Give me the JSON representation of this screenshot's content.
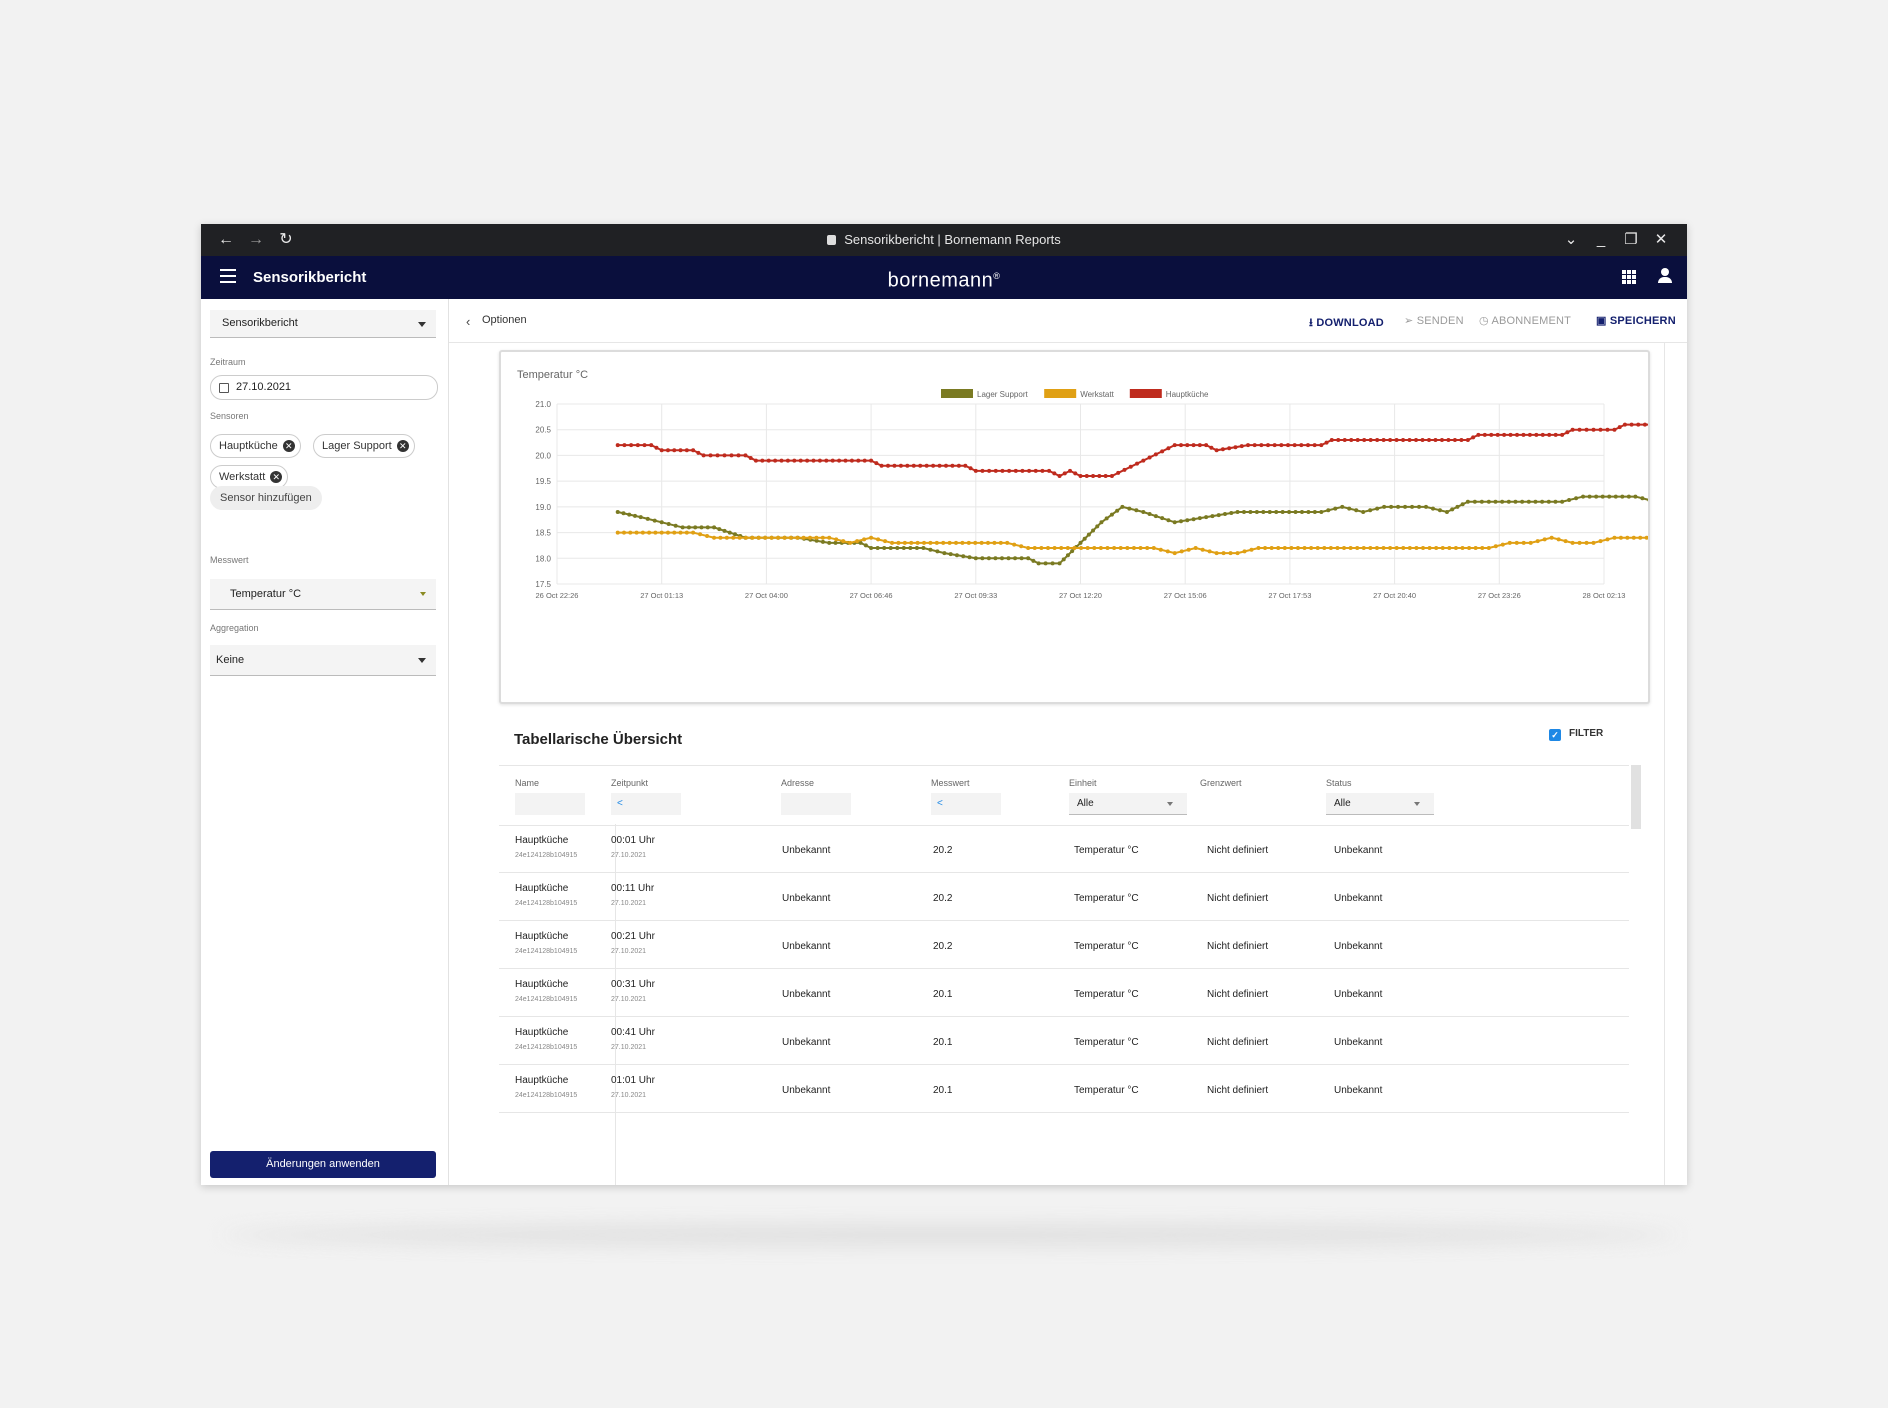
{
  "browser": {
    "tab_title": "Sensorikbericht | Bornemann Reports"
  },
  "appbar": {
    "title": "Sensorikbericht",
    "brand": "bornemann",
    "brand_mark": "®"
  },
  "sidebar": {
    "report_select": "Sensorikbericht",
    "zeitraum_label": "Zeitraum",
    "date_value": "27.10.2021",
    "sensoren_label": "Sensoren",
    "chips": [
      "Hauptküche",
      "Lager Support",
      "Werkstatt"
    ],
    "add_sensor": "Sensor hinzufügen",
    "messwert_label": "Messwert",
    "messwert_value": "Temperatur °C",
    "aggregation_label": "Aggregation",
    "aggregation_value": "Keine",
    "apply_button": "Änderungen anwenden"
  },
  "toolbar": {
    "back_label": "Optionen",
    "download": "DOWNLOAD",
    "senden": "SENDEN",
    "abonnement": "ABONNEMENT",
    "speichern": "SPEICHERN"
  },
  "chart_data": {
    "type": "line",
    "title": "Temperatur °C",
    "ylim": [
      17.5,
      21.0
    ],
    "yticks": [
      "21.0",
      "20.5",
      "20.0",
      "19.5",
      "19.0",
      "18.5",
      "18.0",
      "17.5"
    ],
    "xticks": [
      "26 Oct 22:26",
      "27 Oct 01:13",
      "27 Oct 04:00",
      "27 Oct 06:46",
      "27 Oct 09:33",
      "27 Oct 12:20",
      "27 Oct 15:06",
      "27 Oct 17:53",
      "27 Oct 20:40",
      "27 Oct 23:26",
      "28 Oct 02:13"
    ],
    "grid": true,
    "legend_position": "top",
    "series": [
      {
        "name": "Lager Support",
        "color": "#7a7a22",
        "points": [
          [
            0.58,
            18.9
          ],
          [
            0.8,
            18.8
          ],
          [
            1.0,
            18.7
          ],
          [
            1.2,
            18.6
          ],
          [
            1.5,
            18.6
          ],
          [
            1.65,
            18.5
          ],
          [
            1.8,
            18.4
          ],
          [
            2.3,
            18.4
          ],
          [
            2.6,
            18.3
          ],
          [
            2.9,
            18.3
          ],
          [
            3.0,
            18.2
          ],
          [
            3.5,
            18.2
          ],
          [
            3.7,
            18.1
          ],
          [
            4.0,
            18.0
          ],
          [
            4.5,
            18.0
          ],
          [
            4.6,
            17.9
          ],
          [
            4.8,
            17.9
          ],
          [
            5.0,
            18.3
          ],
          [
            5.2,
            18.7
          ],
          [
            5.4,
            19.0
          ],
          [
            5.6,
            18.9
          ],
          [
            5.9,
            18.7
          ],
          [
            6.2,
            18.8
          ],
          [
            6.5,
            18.9
          ],
          [
            7.3,
            18.9
          ],
          [
            7.5,
            19.0
          ],
          [
            7.7,
            18.9
          ],
          [
            7.9,
            19.0
          ],
          [
            8.1,
            19.0
          ],
          [
            8.3,
            19.0
          ],
          [
            8.5,
            18.9
          ],
          [
            8.7,
            19.1
          ],
          [
            8.9,
            19.1
          ],
          [
            9.6,
            19.1
          ],
          [
            9.8,
            19.2
          ],
          [
            10.3,
            19.2
          ],
          [
            10.5,
            19.1
          ],
          [
            10.7,
            19.2
          ],
          [
            10.9,
            19.3
          ],
          [
            11.8,
            19.3
          ],
          [
            12.0,
            19.4
          ],
          [
            12.9,
            19.4
          ],
          [
            13.1,
            19.3
          ],
          [
            14.0,
            19.3
          ],
          [
            14.2,
            19.2
          ],
          [
            14.4,
            19.3
          ],
          [
            14.6,
            19.2
          ],
          [
            14.8,
            19.3
          ],
          [
            15.0,
            19.2
          ],
          [
            17.0,
            19.2
          ],
          [
            17.2,
            19.1
          ],
          [
            17.4,
            19.2
          ],
          [
            17.6,
            19.1
          ],
          [
            17.8,
            19.0
          ]
        ]
      },
      {
        "name": "Werkstatt",
        "color": "#e0a014",
        "points": [
          [
            0.58,
            18.5
          ],
          [
            1.3,
            18.5
          ],
          [
            1.5,
            18.4
          ],
          [
            2.6,
            18.4
          ],
          [
            2.8,
            18.3
          ],
          [
            3.0,
            18.4
          ],
          [
            3.2,
            18.3
          ],
          [
            4.3,
            18.3
          ],
          [
            4.5,
            18.2
          ],
          [
            5.7,
            18.2
          ],
          [
            5.9,
            18.1
          ],
          [
            6.1,
            18.2
          ],
          [
            6.3,
            18.1
          ],
          [
            6.5,
            18.1
          ],
          [
            6.7,
            18.2
          ],
          [
            8.9,
            18.2
          ],
          [
            9.1,
            18.3
          ],
          [
            9.3,
            18.3
          ],
          [
            9.5,
            18.4
          ],
          [
            9.7,
            18.3
          ],
          [
            9.9,
            18.3
          ],
          [
            10.1,
            18.4
          ],
          [
            12.5,
            18.4
          ],
          [
            14.5,
            18.4
          ],
          [
            14.7,
            18.3
          ],
          [
            16.8,
            18.3
          ],
          [
            17.0,
            18.2
          ],
          [
            17.2,
            18.3
          ],
          [
            17.4,
            18.2
          ],
          [
            17.6,
            18.3
          ],
          [
            17.8,
            18.2
          ]
        ]
      },
      {
        "name": "Hauptküche",
        "color": "#bf2b1e",
        "points": [
          [
            0.58,
            20.2
          ],
          [
            0.9,
            20.2
          ],
          [
            1.0,
            20.1
          ],
          [
            1.3,
            20.1
          ],
          [
            1.4,
            20.0
          ],
          [
            1.8,
            20.0
          ],
          [
            1.9,
            19.9
          ],
          [
            3.0,
            19.9
          ],
          [
            3.1,
            19.8
          ],
          [
            3.9,
            19.8
          ],
          [
            4.0,
            19.7
          ],
          [
            4.7,
            19.7
          ],
          [
            4.8,
            19.6
          ],
          [
            4.9,
            19.7
          ],
          [
            5.0,
            19.6
          ],
          [
            5.3,
            19.6
          ],
          [
            5.6,
            19.9
          ],
          [
            5.9,
            20.2
          ],
          [
            6.2,
            20.2
          ],
          [
            6.3,
            20.1
          ],
          [
            6.6,
            20.2
          ],
          [
            7.3,
            20.2
          ],
          [
            7.4,
            20.3
          ],
          [
            8.7,
            20.3
          ],
          [
            8.8,
            20.4
          ],
          [
            9.6,
            20.4
          ],
          [
            9.7,
            20.5
          ],
          [
            10.1,
            20.5
          ],
          [
            10.2,
            20.6
          ],
          [
            10.9,
            20.6
          ],
          [
            11.0,
            20.5
          ],
          [
            11.5,
            20.5
          ],
          [
            12.0,
            20.6
          ],
          [
            14.2,
            20.6
          ],
          [
            14.4,
            20.5
          ],
          [
            14.8,
            20.5
          ],
          [
            14.9,
            20.6
          ],
          [
            15.1,
            20.5
          ],
          [
            17.0,
            20.5
          ],
          [
            17.8,
            20.5
          ],
          [
            17.9,
            20.4
          ]
        ]
      }
    ]
  },
  "table": {
    "title": "Tabellarische Übersicht",
    "filter_label": "FILTER",
    "columns": [
      "Name",
      "Zeitpunkt",
      "Adresse",
      "Messwert",
      "Einheit",
      "Grenzwert",
      "Status"
    ],
    "filters": {
      "zeitpunkt": "<",
      "messwert": "<",
      "einheit": "Alle",
      "status": "Alle"
    },
    "rows": [
      {
        "name": "Hauptküche",
        "id": "24e124128b104915",
        "time": "00:01 Uhr",
        "date": "27.10.2021",
        "address": "Unbekannt",
        "value": "20.2",
        "unit": "Temperatur °C",
        "limit": "Nicht definiert",
        "status": "Unbekannt"
      },
      {
        "name": "Hauptküche",
        "id": "24e124128b104915",
        "time": "00:11 Uhr",
        "date": "27.10.2021",
        "address": "Unbekannt",
        "value": "20.2",
        "unit": "Temperatur °C",
        "limit": "Nicht definiert",
        "status": "Unbekannt"
      },
      {
        "name": "Hauptküche",
        "id": "24e124128b104915",
        "time": "00:21 Uhr",
        "date": "27.10.2021",
        "address": "Unbekannt",
        "value": "20.2",
        "unit": "Temperatur °C",
        "limit": "Nicht definiert",
        "status": "Unbekannt"
      },
      {
        "name": "Hauptküche",
        "id": "24e124128b104915",
        "time": "00:31 Uhr",
        "date": "27.10.2021",
        "address": "Unbekannt",
        "value": "20.1",
        "unit": "Temperatur °C",
        "limit": "Nicht definiert",
        "status": "Unbekannt"
      },
      {
        "name": "Hauptküche",
        "id": "24e124128b104915",
        "time": "00:41 Uhr",
        "date": "27.10.2021",
        "address": "Unbekannt",
        "value": "20.1",
        "unit": "Temperatur °C",
        "limit": "Nicht definiert",
        "status": "Unbekannt"
      },
      {
        "name": "Hauptküche",
        "id": "24e124128b104915",
        "time": "01:01 Uhr",
        "date": "27.10.2021",
        "address": "Unbekannt",
        "value": "20.1",
        "unit": "Temperatur °C",
        "limit": "Nicht definiert",
        "status": "Unbekannt"
      }
    ]
  }
}
